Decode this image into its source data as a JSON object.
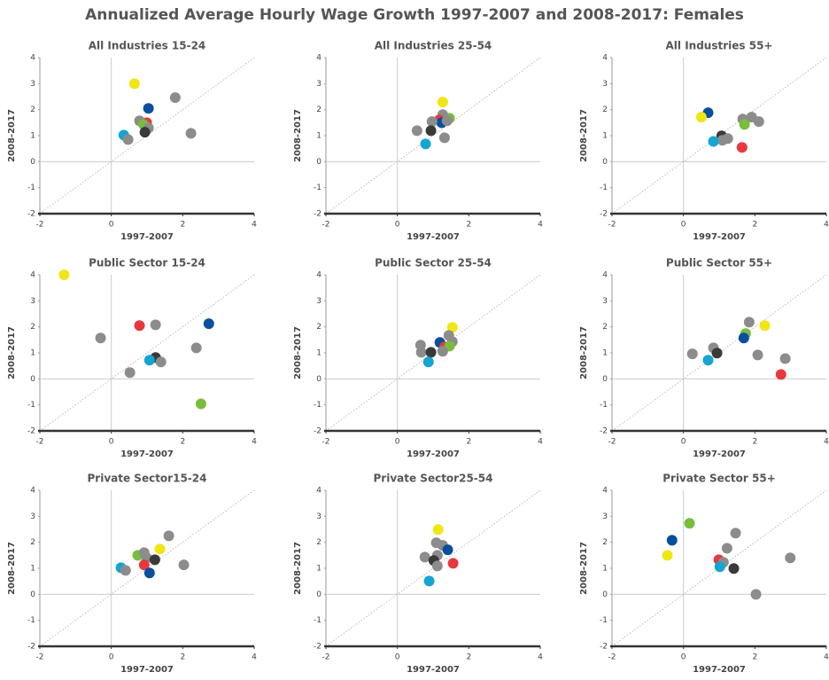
{
  "title": "Annualized Average Hourly Wage Growth 1997-2007 and 2008-2017: Females",
  "chart_data": [
    {
      "type": "scatter",
      "title": "All Industries 15-24",
      "xlabel": "1997-2007",
      "ylabel": "2008-2017",
      "xlim": [
        -2,
        4
      ],
      "ylim": [
        -2,
        4
      ],
      "xticks": [
        -2,
        0,
        2,
        4
      ],
      "yticks": [
        -2,
        -1,
        0,
        1,
        2,
        3,
        4
      ],
      "x": [
        0.65,
        1.04,
        1.79,
        0.99,
        0.79,
        0.9,
        1.04,
        0.94,
        2.23,
        0.35,
        0.47
      ],
      "y": [
        3.0,
        2.05,
        2.46,
        1.5,
        1.57,
        1.43,
        1.3,
        1.13,
        1.09,
        1.02,
        0.85
      ],
      "colors": [
        "#f0e614",
        "#0a4f9e",
        "#8c8c8c",
        "#e8383d",
        "#8c8c8c",
        "#78be3c",
        "#8c8c8c",
        "#3a3a3a",
        "#8c8c8c",
        "#14a5d2",
        "#8c8c8c"
      ]
    },
    {
      "type": "scatter",
      "title": "All Industries 25-54",
      "xlabel": "1997-2007",
      "ylabel": "2008-2017",
      "xlim": [
        -2,
        4
      ],
      "ylim": [
        -2,
        4
      ],
      "xticks": [
        -2,
        0,
        2,
        4
      ],
      "yticks": [
        -2,
        -1,
        0,
        1,
        2,
        3,
        4
      ],
      "x": [
        1.27,
        1.46,
        1.27,
        1.17,
        1.24,
        1.39,
        0.97,
        0.55,
        0.94,
        1.32,
        0.79
      ],
      "y": [
        2.29,
        1.67,
        1.81,
        1.6,
        1.5,
        1.57,
        1.54,
        1.19,
        1.19,
        0.92,
        0.68
      ],
      "colors": [
        "#f0e614",
        "#78be3c",
        "#8c8c8c",
        "#e8383d",
        "#0a4f9e",
        "#8c8c8c",
        "#8c8c8c",
        "#8c8c8c",
        "#3a3a3a",
        "#8c8c8c",
        "#14a5d2"
      ]
    },
    {
      "type": "scatter",
      "title": "All Industries 55+",
      "xlabel": "1997-2007",
      "ylabel": "2008-2017",
      "xlim": [
        -2,
        4
      ],
      "ylim": [
        -2,
        4
      ],
      "xticks": [
        -2,
        0,
        2,
        4
      ],
      "yticks": [
        -2,
        -1,
        0,
        1,
        2,
        3,
        4
      ],
      "x": [
        0.69,
        0.5,
        1.66,
        1.91,
        2.11,
        1.71,
        1.07,
        1.24,
        1.09,
        0.84,
        1.64
      ],
      "y": [
        1.88,
        1.71,
        1.64,
        1.71,
        1.54,
        1.43,
        0.99,
        0.89,
        0.82,
        0.78,
        0.55
      ],
      "colors": [
        "#0a4f9e",
        "#f0e614",
        "#8c8c8c",
        "#8c8c8c",
        "#8c8c8c",
        "#78be3c",
        "#3a3a3a",
        "#8c8c8c",
        "#8c8c8c",
        "#14a5d2",
        "#e8383d"
      ]
    },
    {
      "type": "scatter",
      "title": "Public Sector 15-24",
      "xlabel": "1997-2007",
      "ylabel": "2008-2017",
      "xlim": [
        -2,
        4
      ],
      "ylim": [
        -2,
        4
      ],
      "xticks": [
        -2,
        0,
        2,
        4
      ],
      "yticks": [
        -2,
        -1,
        0,
        1,
        2,
        3,
        4
      ],
      "x": [
        -1.32,
        2.73,
        1.24,
        0.79,
        2.38,
        -0.3,
        1.24,
        1.39,
        1.07,
        0.52,
        2.51
      ],
      "y": [
        4.0,
        2.12,
        2.08,
        2.05,
        1.19,
        1.57,
        0.82,
        0.65,
        0.72,
        0.24,
        -0.96
      ],
      "colors": [
        "#f0e614",
        "#0a4f9e",
        "#8c8c8c",
        "#e8383d",
        "#8c8c8c",
        "#8c8c8c",
        "#3a3a3a",
        "#8c8c8c",
        "#14a5d2",
        "#8c8c8c",
        "#78be3c"
      ]
    },
    {
      "type": "scatter",
      "title": "Public Sector 25-54",
      "xlabel": "1997-2007",
      "ylabel": "2008-2017",
      "xlim": [
        -2,
        4
      ],
      "ylim": [
        -2,
        4
      ],
      "xticks": [
        -2,
        0,
        2,
        4
      ],
      "yticks": [
        -2,
        -1,
        0,
        1,
        2,
        3,
        4
      ],
      "x": [
        1.54,
        1.44,
        1.54,
        1.19,
        1.32,
        1.46,
        0.65,
        0.67,
        0.94,
        1.27,
        0.87
      ],
      "y": [
        1.98,
        1.67,
        1.43,
        1.4,
        1.23,
        1.26,
        1.3,
        1.02,
        1.02,
        1.06,
        0.65
      ],
      "colors": [
        "#f0e614",
        "#8c8c8c",
        "#8c8c8c",
        "#0a4f9e",
        "#e8383d",
        "#78be3c",
        "#8c8c8c",
        "#8c8c8c",
        "#3a3a3a",
        "#8c8c8c",
        "#14a5d2"
      ]
    },
    {
      "type": "scatter",
      "title": "Public Sector 55+",
      "xlabel": "1997-2007",
      "ylabel": "2008-2017",
      "xlim": [
        -2,
        4
      ],
      "ylim": [
        -2,
        4
      ],
      "xticks": [
        -2,
        0,
        2,
        4
      ],
      "yticks": [
        -2,
        -1,
        0,
        1,
        2,
        3,
        4
      ],
      "x": [
        1.84,
        2.28,
        1.74,
        1.69,
        0.84,
        0.94,
        0.25,
        2.08,
        2.85,
        0.69,
        2.73
      ],
      "y": [
        2.18,
        2.05,
        1.74,
        1.57,
        1.19,
        0.99,
        0.96,
        0.92,
        0.78,
        0.72,
        0.17
      ],
      "colors": [
        "#8c8c8c",
        "#f0e614",
        "#78be3c",
        "#0a4f9e",
        "#8c8c8c",
        "#3a3a3a",
        "#8c8c8c",
        "#8c8c8c",
        "#8c8c8c",
        "#14a5d2",
        "#e8383d"
      ]
    },
    {
      "type": "scatter",
      "title": "Private Sector15-24",
      "xlabel": "1997-2007",
      "ylabel": "2008-2017",
      "xlim": [
        -2,
        4
      ],
      "ylim": [
        -2,
        4
      ],
      "xticks": [
        -2,
        0,
        2,
        4
      ],
      "yticks": [
        -2,
        -1,
        0,
        1,
        2,
        3,
        4
      ],
      "x": [
        1.61,
        1.36,
        0.74,
        0.92,
        0.99,
        1.22,
        0.92,
        2.03,
        0.27,
        0.4,
        1.07
      ],
      "y": [
        2.25,
        1.74,
        1.5,
        1.6,
        1.4,
        1.33,
        1.13,
        1.13,
        1.02,
        0.92,
        0.82
      ],
      "colors": [
        "#8c8c8c",
        "#f0e614",
        "#78be3c",
        "#8c8c8c",
        "#8c8c8c",
        "#3a3a3a",
        "#e8383d",
        "#8c8c8c",
        "#14a5d2",
        "#8c8c8c",
        "#0a4f9e"
      ]
    },
    {
      "type": "scatter",
      "title": "Private Sector25-54",
      "xlabel": "1997-2007",
      "ylabel": "2008-2017",
      "xlim": [
        -2,
        4
      ],
      "ylim": [
        -2,
        4
      ],
      "xticks": [
        -2,
        0,
        2,
        4
      ],
      "yticks": [
        -2,
        -1,
        0,
        1,
        2,
        3,
        4
      ],
      "x": [
        1.14,
        1.09,
        1.27,
        1.41,
        1.12,
        0.77,
        1.02,
        1.12,
        1.56,
        0.89
      ],
      "y": [
        2.49,
        1.98,
        1.88,
        1.71,
        1.5,
        1.43,
        1.3,
        1.09,
        1.19,
        0.51
      ],
      "colors": [
        "#f0e614",
        "#8c8c8c",
        "#8c8c8c",
        "#0a4f9e",
        "#8c8c8c",
        "#8c8c8c",
        "#3a3a3a",
        "#8c8c8c",
        "#e8383d",
        "#14a5d2"
      ]
    },
    {
      "type": "scatter",
      "title": "Private Sector 55+",
      "xlabel": "1997-2007",
      "ylabel": "2008-2017",
      "xlim": [
        -2,
        4
      ],
      "ylim": [
        -2,
        4
      ],
      "xticks": [
        -2,
        0,
        2,
        4
      ],
      "yticks": [
        -2,
        -1,
        0,
        1,
        2,
        3,
        4
      ],
      "x": [
        0.17,
        1.46,
        -0.32,
        1.22,
        -0.45,
        2.99,
        0.99,
        1.12,
        1.02,
        1.41,
        2.03
      ],
      "y": [
        2.73,
        2.35,
        2.08,
        1.77,
        1.5,
        1.4,
        1.33,
        1.23,
        1.06,
        0.99,
        0
      ],
      "colors": [
        "#78be3c",
        "#8c8c8c",
        "#0a4f9e",
        "#8c8c8c",
        "#f0e614",
        "#8c8c8c",
        "#e8383d",
        "#8c8c8c",
        "#14a5d2",
        "#3a3a3a",
        "#8c8c8c"
      ]
    }
  ]
}
